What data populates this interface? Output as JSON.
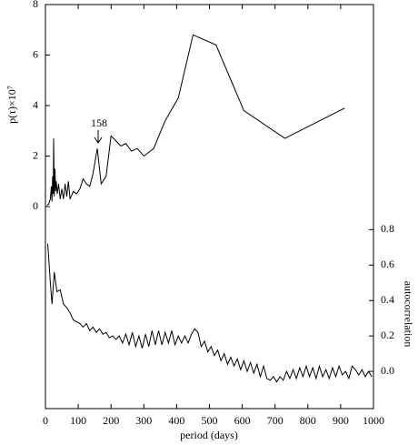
{
  "chart_data": {
    "type": "line",
    "xlabel": "period (days)",
    "ylabel": "p(τ)×10⁷",
    "y2label": "autocorrelation",
    "annotation": "158",
    "xlim": [
      0,
      1000
    ],
    "xticks": [
      0,
      100,
      200,
      300,
      400,
      500,
      600,
      700,
      800,
      900,
      1000
    ],
    "ylim": [
      -8,
      8
    ],
    "yticks": [
      0,
      2,
      4,
      6,
      8
    ],
    "y2lim": [
      -0.21,
      2.07
    ],
    "y2ticks": [
      {
        "value": 0,
        "label": "0.0"
      },
      0.2,
      0.4,
      0.6,
      0.8
    ],
    "series": [
      {
        "color": "#000000",
        "axis": "y",
        "x": [
          5,
          10,
          15,
          18,
          20,
          22,
          24,
          25,
          27,
          29,
          31,
          33,
          36,
          40,
          45,
          50,
          55,
          60,
          65,
          70,
          75,
          85,
          95,
          105,
          115,
          125,
          135,
          145,
          158,
          170,
          185,
          200,
          215,
          230,
          245,
          262,
          280,
          300,
          330,
          365,
          405,
          450,
          520,
          605,
          730,
          912
        ],
        "values": [
          0.05,
          0.1,
          0.3,
          0.8,
          0.2,
          1.2,
          0.5,
          2.7,
          0.4,
          1.5,
          0.6,
          1.0,
          0.5,
          0.9,
          0.3,
          0.7,
          0.3,
          0.9,
          0.4,
          1.0,
          0.3,
          0.6,
          0.5,
          0.7,
          1.1,
          0.9,
          0.8,
          1.3,
          2.3,
          0.9,
          1.2,
          2.8,
          2.6,
          2.4,
          2.5,
          2.2,
          2.3,
          2.0,
          2.3,
          3.4,
          4.3,
          6.8,
          6.4,
          3.8,
          2.7,
          3.9
        ]
      },
      {
        "color": "#000000",
        "axis": "y2",
        "x": [
          7,
          15,
          20,
          27,
          35,
          45,
          55,
          65,
          75,
          85,
          95,
          105,
          115,
          125,
          135,
          145,
          155,
          165,
          175,
          185,
          195,
          205,
          215,
          225,
          235,
          245,
          255,
          265,
          275,
          285,
          295,
          305,
          315,
          325,
          335,
          345,
          355,
          365,
          375,
          385,
          395,
          405,
          415,
          425,
          435,
          445,
          455,
          465,
          475,
          485,
          495,
          505,
          515,
          525,
          535,
          545,
          555,
          565,
          575,
          585,
          595,
          605,
          615,
          625,
          635,
          645,
          655,
          665,
          675,
          685,
          695,
          705,
          715,
          725,
          735,
          745,
          755,
          765,
          775,
          785,
          795,
          805,
          815,
          825,
          835,
          845,
          855,
          865,
          875,
          885,
          895,
          905,
          915,
          925,
          935,
          945,
          955,
          965,
          975,
          985,
          995
        ],
        "values": [
          0.72,
          0.5,
          0.38,
          0.56,
          0.45,
          0.46,
          0.38,
          0.36,
          0.33,
          0.29,
          0.28,
          0.27,
          0.25,
          0.27,
          0.23,
          0.25,
          0.22,
          0.24,
          0.21,
          0.22,
          0.19,
          0.2,
          0.18,
          0.2,
          0.16,
          0.21,
          0.15,
          0.22,
          0.14,
          0.2,
          0.13,
          0.21,
          0.14,
          0.23,
          0.15,
          0.23,
          0.15,
          0.22,
          0.16,
          0.23,
          0.15,
          0.2,
          0.16,
          0.2,
          0.16,
          0.21,
          0.24,
          0.22,
          0.14,
          0.17,
          0.11,
          0.14,
          0.09,
          0.12,
          0.06,
          0.1,
          0.04,
          0.08,
          0.03,
          0.07,
          0.01,
          0.06,
          0.0,
          0.05,
          -0.01,
          0.04,
          -0.03,
          0.03,
          -0.04,
          -0.05,
          -0.03,
          -0.06,
          -0.03,
          -0.05,
          0.0,
          -0.04,
          0.01,
          -0.04,
          0.02,
          -0.03,
          0.03,
          -0.03,
          0.02,
          -0.04,
          0.03,
          -0.03,
          0.01,
          -0.04,
          0.02,
          -0.03,
          0.03,
          -0.02,
          0.0,
          -0.04,
          0.03,
          0.01,
          -0.02,
          0.01,
          -0.03,
          0.0,
          -0.03
        ]
      }
    ]
  }
}
